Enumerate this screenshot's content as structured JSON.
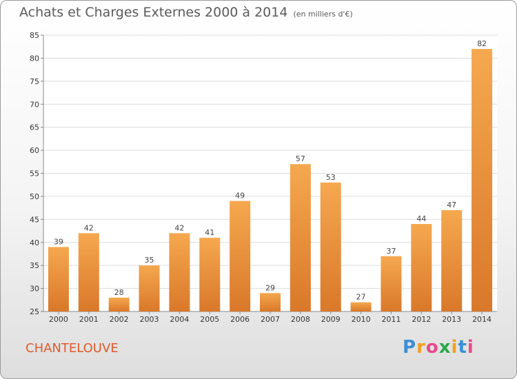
{
  "header": {
    "title": "Achats et Charges Externes 2000 à 2014",
    "unit": "(en milliers d'€)"
  },
  "footer": {
    "city": "CHANTELOUVE",
    "logo_letters": [
      "P",
      "r",
      "o",
      "x",
      "i",
      "t",
      "i"
    ],
    "logo_colors": [
      "#3a8fd6",
      "#f0a020",
      "#e84a8a",
      "#2aa84a",
      "#f0a020",
      "#3a8fd6",
      "#e84a8a"
    ]
  },
  "colors": {
    "bar_light": "#f5a84f",
    "bar_dark": "#d9782a",
    "grid": "#dcdcdc",
    "axis": "#888888"
  },
  "chart_data": {
    "type": "bar",
    "title": "Achats et Charges Externes 2000 à 2014",
    "subtitle": "(en milliers d'€)",
    "xlabel": "",
    "ylabel": "",
    "categories": [
      "2000",
      "2001",
      "2002",
      "2003",
      "2004",
      "2005",
      "2006",
      "2007",
      "2008",
      "2009",
      "2010",
      "2011",
      "2012",
      "2013",
      "2014"
    ],
    "values": [
      39,
      42,
      28,
      35,
      42,
      41,
      49,
      29,
      57,
      53,
      27,
      37,
      44,
      47,
      82
    ],
    "ylim": [
      25,
      85
    ],
    "yticks": [
      25,
      30,
      35,
      40,
      45,
      50,
      55,
      60,
      65,
      70,
      75,
      80,
      85
    ],
    "grid": true,
    "legend": "none"
  }
}
